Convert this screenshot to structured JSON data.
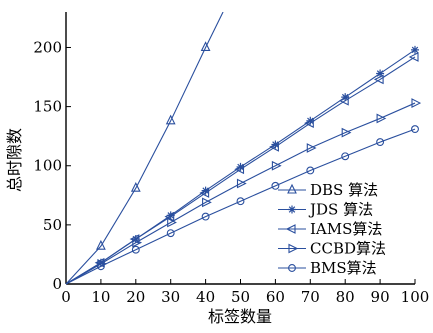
{
  "chart_data": {
    "type": "line",
    "title": "",
    "xlabel": "标签数量",
    "ylabel": "总时隙数",
    "x": [
      0,
      10,
      20,
      30,
      40,
      50,
      60,
      70,
      80,
      90,
      100
    ],
    "xlim": [
      0,
      100
    ],
    "ylim": [
      0,
      230
    ],
    "xticks": [
      0,
      10,
      20,
      30,
      40,
      50,
      60,
      70,
      80,
      90,
      100
    ],
    "yticks": [
      0,
      50,
      100,
      150,
      200
    ],
    "grid": false,
    "legend_position": "lower-right",
    "series": [
      {
        "name": "DBS 算法",
        "marker": "triangle-up",
        "x": [
          0,
          10,
          20,
          30,
          40,
          45
        ],
        "values": [
          0,
          32,
          81,
          138,
          200,
          230
        ]
      },
      {
        "name": "JDS 算法",
        "marker": "star",
        "x": [
          0,
          10,
          20,
          30,
          40,
          50,
          60,
          70,
          80,
          90,
          100
        ],
        "values": [
          0,
          18,
          38,
          58,
          79,
          99,
          118,
          138,
          158,
          178,
          198
        ]
      },
      {
        "name": "IAMS算法",
        "marker": "triangle-left",
        "x": [
          0,
          10,
          20,
          30,
          40,
          50,
          60,
          70,
          80,
          90,
          100
        ],
        "values": [
          0,
          18,
          38,
          57,
          77,
          97,
          116,
          136,
          155,
          173,
          192
        ]
      },
      {
        "name": "CCBD算法",
        "marker": "triangle-right",
        "x": [
          0,
          10,
          20,
          30,
          40,
          50,
          60,
          70,
          80,
          90,
          100
        ],
        "values": [
          0,
          17,
          35,
          52,
          69,
          85,
          100,
          115,
          128,
          140,
          153
        ]
      },
      {
        "name": "BMS算法",
        "marker": "circle",
        "x": [
          0,
          10,
          20,
          30,
          40,
          50,
          60,
          70,
          80,
          90,
          100
        ],
        "values": [
          0,
          15,
          29,
          43,
          57,
          70,
          83,
          96,
          108,
          120,
          131
        ]
      }
    ]
  },
  "colors": {
    "series": "#2a4f9e",
    "axis": "#000000"
  }
}
